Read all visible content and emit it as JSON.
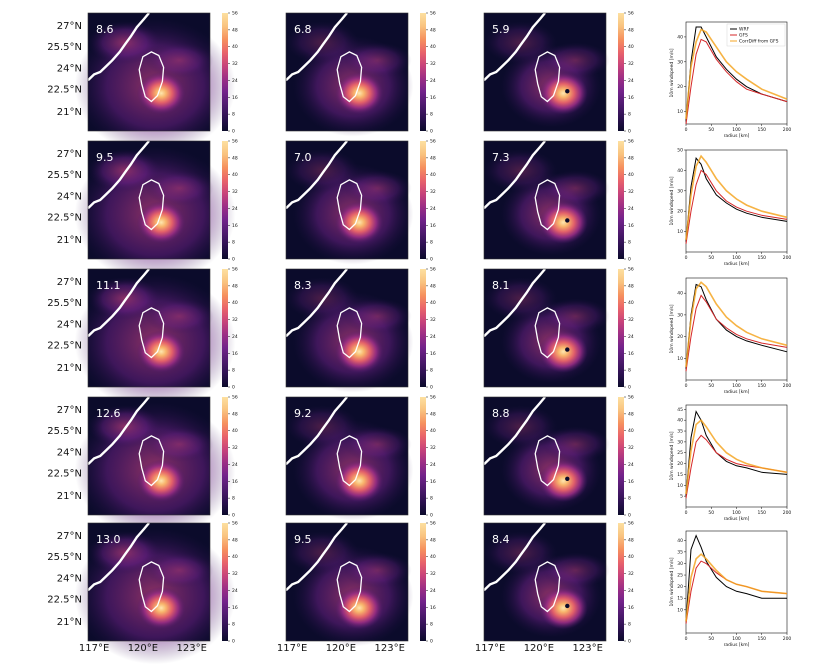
{
  "chart_data": {
    "type": "heatmap",
    "description_axes": {
      "lat_ticks": [
        "27°N",
        "25.5°N",
        "24°N",
        "22.5°N",
        "21°N"
      ],
      "lon_ticks": [
        "117°E",
        "120°E",
        "123°E"
      ]
    },
    "colorbar": {
      "ticks": [
        "0",
        "8",
        "16",
        "24",
        "32",
        "40",
        "48",
        "56"
      ],
      "colors": [
        "#0b0b2b",
        "#2c1150",
        "#4e1a6e",
        "#72228a",
        "#9c2e85",
        "#c8437a",
        "#e9636a",
        "#f6915e",
        "#f9c37f",
        "#fde0a0"
      ]
    },
    "panel_values": [
      [
        "8.6",
        "6.8",
        "5.9"
      ],
      [
        "9.5",
        "7.0",
        "7.3"
      ],
      [
        "11.1",
        "8.3",
        "8.1"
      ],
      [
        "12.6",
        "9.2",
        "8.8"
      ],
      [
        "13.0",
        "9.5",
        "8.4"
      ]
    ],
    "profiles": {
      "xlabel": "radius [km]",
      "ylabel": "10m windspeed [m/s]",
      "xticks": [
        "0",
        "50",
        "100",
        "150",
        "200"
      ],
      "legend": [
        "WRF",
        "GFS",
        "CorrDiff from GFS"
      ],
      "series_colors": [
        "#000000",
        "#d62728",
        "#f5a623"
      ],
      "x": [
        0,
        10,
        20,
        30,
        40,
        60,
        80,
        100,
        120,
        150,
        200
      ],
      "rows": [
        {
          "yticks": [
            "10",
            "20",
            "30",
            "40"
          ],
          "ylim": [
            5,
            46
          ],
          "WRF": [
            6,
            30,
            44,
            44,
            40,
            32,
            27,
            23,
            20,
            17,
            14
          ],
          "GFS": [
            5,
            20,
            33,
            39,
            38,
            31,
            26,
            22,
            19,
            17,
            14
          ],
          "CorrDiff": [
            7,
            28,
            38,
            43,
            42,
            36,
            30,
            26,
            23,
            19,
            15
          ]
        },
        {
          "yticks": [
            "10",
            "20",
            "30",
            "40",
            "50"
          ],
          "ylim": [
            0,
            50
          ],
          "WRF": [
            5,
            32,
            46,
            43,
            36,
            28,
            24,
            21,
            19,
            17,
            15
          ],
          "GFS": [
            4,
            20,
            33,
            40,
            38,
            30,
            25,
            22,
            20,
            18,
            16
          ],
          "CorrDiff": [
            6,
            28,
            42,
            47,
            44,
            36,
            30,
            26,
            23,
            20,
            17
          ]
        },
        {
          "yticks": [
            "10",
            "20",
            "30",
            "40"
          ],
          "ylim": [
            0,
            47
          ],
          "WRF": [
            5,
            30,
            44,
            43,
            37,
            28,
            23,
            20,
            18,
            16,
            13
          ],
          "GFS": [
            4,
            20,
            33,
            39,
            36,
            28,
            24,
            21,
            19,
            17,
            15
          ],
          "CorrDiff": [
            6,
            28,
            42,
            45,
            43,
            35,
            29,
            25,
            22,
            19,
            16
          ]
        },
        {
          "yticks": [
            "5",
            "10",
            "15",
            "20",
            "25",
            "30",
            "35",
            "40",
            "45"
          ],
          "ylim": [
            0,
            47
          ],
          "WRF": [
            5,
            32,
            44,
            40,
            33,
            25,
            21,
            19,
            18,
            16,
            15
          ],
          "GFS": [
            4,
            18,
            30,
            33,
            31,
            25,
            22,
            20,
            19,
            18,
            16
          ],
          "CorrDiff": [
            6,
            26,
            38,
            40,
            37,
            30,
            25,
            22,
            20,
            18,
            16
          ]
        },
        {
          "yticks": [
            "10",
            "15",
            "20",
            "25",
            "30",
            "35",
            "40"
          ],
          "ylim": [
            0,
            44
          ],
          "WRF": [
            5,
            36,
            42,
            37,
            31,
            24,
            20,
            18,
            17,
            15,
            15
          ],
          "GFS": [
            4,
            18,
            28,
            31,
            30,
            26,
            23,
            21,
            20,
            18,
            17
          ],
          "CorrDiff": [
            5,
            24,
            32,
            34,
            32,
            27,
            23,
            21,
            20,
            18,
            17
          ]
        }
      ]
    }
  }
}
